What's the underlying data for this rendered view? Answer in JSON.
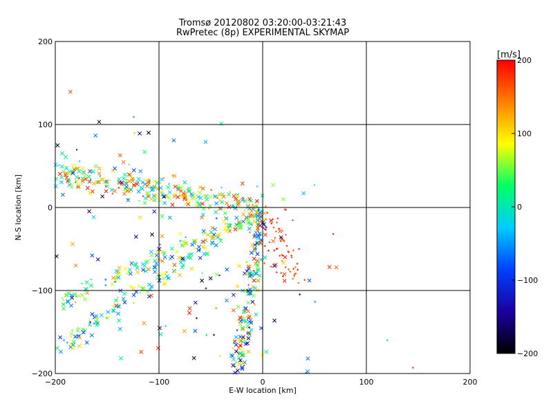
{
  "chart_data": {
    "type": "scatter",
    "title": "Tromsø 20120802 03:20:00-03:21:43",
    "subtitle": "RwPretec (8p) EXPERIMENTAL SKYMAP",
    "xlabel": "E-W location [km]",
    "ylabel": "N-S location [km]",
    "xlim": [
      -200,
      200
    ],
    "ylim": [
      -200,
      200
    ],
    "xticks": [
      -200,
      -100,
      0,
      100,
      200
    ],
    "yticks": [
      -200,
      -100,
      0,
      100,
      200
    ],
    "grid": true,
    "colorbar": {
      "label": "[m/s]",
      "range": [
        -200,
        200
      ],
      "ticks": [
        -200,
        -100,
        0,
        100,
        200
      ],
      "colormap": [
        "#000000",
        "#1a00a0",
        "#0040ff",
        "#00ccff",
        "#00ff66",
        "#ffff00",
        "#ff8000",
        "#ff0000"
      ]
    },
    "markers": [
      "x",
      "+",
      "."
    ],
    "clusters": [
      {
        "name": "northern-band",
        "from": [
          -195,
          40
        ],
        "to": [
          -5,
          2
        ],
        "count": 260,
        "spread": 8,
        "vmin": -60,
        "vmax": 200,
        "symbol": "x"
      },
      {
        "name": "central-vertical",
        "from": [
          0,
          -5
        ],
        "to": [
          -25,
          -200
        ],
        "count": 180,
        "spread": 4,
        "vmin": -150,
        "vmax": 200,
        "symbol": "x"
      },
      {
        "name": "southwest-diagonal",
        "from": [
          -200,
          -170
        ],
        "to": [
          -5,
          -5
        ],
        "count": 140,
        "spread": 6,
        "vmin": -120,
        "vmax": 120,
        "symbol": "x"
      },
      {
        "name": "western-diagonal",
        "from": [
          -200,
          -115
        ],
        "to": [
          -5,
          -8
        ],
        "count": 120,
        "spread": 5,
        "vmin": -80,
        "vmax": 150,
        "symbol": "x"
      },
      {
        "name": "east-red-scatter",
        "from": [
          5,
          -5
        ],
        "to": [
          25,
          -85
        ],
        "count": 70,
        "spread": 8,
        "vmin": 150,
        "vmax": 200,
        "symbol": "+"
      },
      {
        "name": "scattered-west",
        "from": [
          -190,
          80
        ],
        "to": [
          -20,
          -190
        ],
        "count": 150,
        "spread": 50,
        "vmin": -200,
        "vmax": 200,
        "symbol": "x"
      }
    ],
    "singles": [
      {
        "x": -110,
        "y": 90,
        "v": -200,
        "symbol": "x"
      },
      {
        "x": -55,
        "y": 79,
        "v": -40,
        "symbol": "x"
      },
      {
        "x": 50,
        "y": 27,
        "v": 20,
        "symbol": "."
      },
      {
        "x": 45,
        "y": -88,
        "v": -80,
        "symbol": "x"
      },
      {
        "x": 120,
        "y": -160,
        "v": 20,
        "symbol": "."
      },
      {
        "x": 145,
        "y": -193,
        "v": 200,
        "symbol": "."
      },
      {
        "x": 68,
        "y": -32,
        "v": 200,
        "symbol": "."
      },
      {
        "x": 35,
        "y": -50,
        "v": 200,
        "symbol": "."
      },
      {
        "x": 10,
        "y": 27,
        "v": 60,
        "symbol": "x"
      },
      {
        "x": 20,
        "y": 10,
        "v": 60,
        "symbol": "x"
      }
    ]
  }
}
